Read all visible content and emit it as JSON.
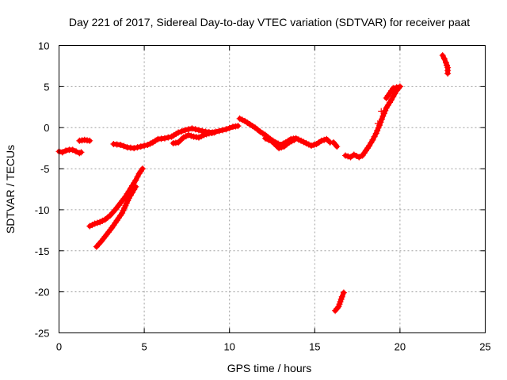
{
  "chart_data": {
    "type": "scatter",
    "title": "Day 221 of 2017, Sidereal Day-to-day VTEC variation (SDTVAR) for receiver paat",
    "xlabel": "GPS time / hours",
    "ylabel": "SDTVAR / TECUs",
    "xlim": [
      0,
      25
    ],
    "ylim": [
      -25,
      10
    ],
    "xticks": [
      "0",
      "5",
      "10",
      "15",
      "20",
      "25"
    ],
    "yticks": [
      "10",
      "5",
      "0",
      "-5",
      "-10",
      "-15",
      "-20",
      "-25"
    ],
    "grid": true,
    "legend": "none",
    "marker": "plus",
    "color": "#ff0000",
    "series": [
      {
        "points": [
          [
            0.0,
            -2.9
          ],
          [
            0.2,
            -3.0
          ],
          [
            0.4,
            -2.8
          ],
          [
            0.6,
            -2.7
          ],
          [
            0.8,
            -2.7
          ],
          [
            1.0,
            -2.9
          ],
          [
            1.2,
            -3.1
          ],
          [
            1.3,
            -3.0
          ],
          [
            1.2,
            -1.6
          ],
          [
            1.5,
            -1.5
          ],
          [
            1.8,
            -1.6
          ],
          [
            3.2,
            -2.0
          ],
          [
            3.6,
            -2.1
          ],
          [
            4.0,
            -2.4
          ],
          [
            4.4,
            -2.5
          ],
          [
            4.8,
            -2.3
          ],
          [
            5.2,
            -2.1
          ],
          [
            5.5,
            -1.8
          ],
          [
            5.8,
            -1.4
          ],
          [
            6.2,
            -1.3
          ],
          [
            6.6,
            -1.1
          ],
          [
            7.0,
            -0.6
          ],
          [
            7.4,
            -0.3
          ],
          [
            7.8,
            -0.1
          ],
          [
            8.2,
            -0.3
          ],
          [
            8.6,
            -0.5
          ],
          [
            9.0,
            -0.6
          ],
          [
            9.4,
            -0.4
          ],
          [
            9.8,
            -0.2
          ],
          [
            10.2,
            0.1
          ],
          [
            10.5,
            0.2
          ],
          [
            6.7,
            -1.9
          ],
          [
            7.0,
            -1.8
          ],
          [
            7.3,
            -1.2
          ],
          [
            7.6,
            -0.9
          ],
          [
            7.9,
            -1.1
          ],
          [
            8.2,
            -1.2
          ],
          [
            8.5,
            -0.9
          ],
          [
            8.8,
            -0.7
          ],
          [
            9.1,
            -0.6
          ],
          [
            10.6,
            1.1
          ],
          [
            10.9,
            0.8
          ],
          [
            11.2,
            0.4
          ],
          [
            11.5,
            0.0
          ],
          [
            11.8,
            -0.5
          ],
          [
            12.1,
            -0.9
          ],
          [
            12.4,
            -1.4
          ],
          [
            12.7,
            -1.8
          ],
          [
            13.0,
            -2.1
          ],
          [
            13.3,
            -1.8
          ],
          [
            13.6,
            -1.4
          ],
          [
            13.9,
            -1.3
          ],
          [
            14.2,
            -1.6
          ],
          [
            14.5,
            -1.9
          ],
          [
            14.8,
            -2.2
          ],
          [
            15.1,
            -2.0
          ],
          [
            15.4,
            -1.6
          ],
          [
            15.7,
            -1.4
          ],
          [
            15.9,
            -1.8
          ],
          [
            12.1,
            -1.3
          ],
          [
            12.5,
            -1.7
          ],
          [
            12.9,
            -2.5
          ],
          [
            13.2,
            -2.3
          ],
          [
            13.5,
            -1.8
          ],
          [
            13.8,
            -1.5
          ],
          [
            16.1,
            -1.8
          ],
          [
            16.3,
            -2.3
          ],
          [
            16.8,
            -3.4
          ],
          [
            17.1,
            -3.6
          ],
          [
            17.3,
            -3.3
          ],
          [
            17.6,
            -3.6
          ],
          [
            17.8,
            -3.4
          ],
          [
            18.0,
            -2.8
          ],
          [
            18.2,
            -2.2
          ],
          [
            18.4,
            -1.5
          ],
          [
            18.6,
            -0.7
          ],
          [
            18.8,
            0.3
          ],
          [
            19.0,
            1.4
          ],
          [
            19.2,
            2.4
          ],
          [
            19.5,
            3.4
          ],
          [
            19.8,
            4.5
          ],
          [
            20.0,
            5.0
          ],
          [
            19.6,
            4.8
          ],
          [
            19.2,
            3.6
          ],
          [
            18.9,
            2.0
          ],
          [
            18.7,
            0.5
          ],
          [
            22.5,
            8.8
          ],
          [
            22.6,
            8.4
          ],
          [
            22.7,
            7.9
          ],
          [
            22.8,
            7.3
          ],
          [
            22.8,
            6.6
          ],
          [
            1.8,
            -12.0
          ],
          [
            2.1,
            -11.7
          ],
          [
            2.4,
            -11.5
          ],
          [
            2.7,
            -11.2
          ],
          [
            3.0,
            -10.7
          ],
          [
            3.3,
            -10.0
          ],
          [
            3.6,
            -9.2
          ],
          [
            3.9,
            -8.4
          ],
          [
            4.2,
            -7.4
          ],
          [
            4.5,
            -6.4
          ],
          [
            4.7,
            -5.6
          ],
          [
            4.9,
            -5.0
          ],
          [
            2.2,
            -14.5
          ],
          [
            2.5,
            -13.8
          ],
          [
            2.8,
            -13.0
          ],
          [
            3.1,
            -12.2
          ],
          [
            3.4,
            -11.3
          ],
          [
            3.7,
            -10.4
          ],
          [
            3.9,
            -9.5
          ],
          [
            4.1,
            -8.6
          ],
          [
            4.3,
            -7.9
          ],
          [
            4.5,
            -7.2
          ],
          [
            16.2,
            -22.3
          ],
          [
            16.4,
            -21.8
          ],
          [
            16.5,
            -21.2
          ],
          [
            16.6,
            -20.6
          ],
          [
            16.7,
            -20.1
          ]
        ]
      }
    ]
  }
}
